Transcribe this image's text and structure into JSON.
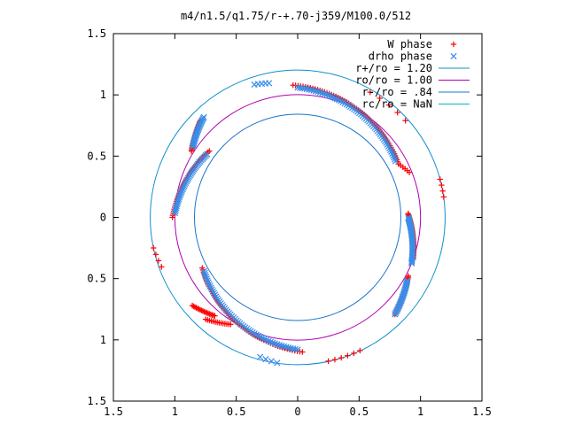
{
  "chart_data": {
    "type": "scatter",
    "title": "m4/n1.5/q1.75/r-+.70-j359/M100.0/512",
    "xlabel": "",
    "ylabel": "",
    "xlim": [
      -1.5,
      1.5
    ],
    "ylim": [
      -1.5,
      1.5
    ],
    "x_ticks": [
      -1.5,
      -1,
      -0.5,
      0,
      0.5,
      1,
      1.5
    ],
    "x_tick_labels": [
      "1.5",
      "1",
      "0.5",
      "0",
      "0.5",
      "1",
      "1.5"
    ],
    "y_ticks": [
      1.5,
      1,
      0.5,
      0,
      -0.5,
      -1,
      -1.5
    ],
    "y_tick_labels": [
      "1.5",
      "1",
      "0.5",
      "0",
      "0.5",
      "1",
      "1.5"
    ],
    "grid": false,
    "legend_position": "top-right",
    "colors": {
      "w_phase": "#ff0000",
      "drho_phase": "#3a8de8",
      "r_plus": "#0f8fcf",
      "r_o": "#b000b0",
      "r_minus": "#1a74c8",
      "r_c": "#00b8b8",
      "axis": "#000000"
    },
    "circles": [
      {
        "name": "r+/ro = 1.20",
        "radius": 1.2,
        "color_key": "r_plus"
      },
      {
        "name": "ro/ro = 1.00",
        "radius": 1.0,
        "color_key": "r_o"
      },
      {
        "name": "r-/ro = .84",
        "radius": 0.84,
        "color_key": "r_minus"
      },
      {
        "name": "rc/ro = NaN",
        "radius": null,
        "color_key": "r_c"
      }
    ],
    "series": [
      {
        "name": "W phase",
        "marker": "+",
        "color_key": "w_phase",
        "arcs": [
          {
            "a0": 92,
            "a1": 28,
            "r0": 1.08,
            "r1": 0.93,
            "n": 60
          },
          {
            "a0": 28,
            "a1": 22,
            "r0": 0.93,
            "r1": 0.98,
            "n": 6
          },
          {
            "a0": 2,
            "a1": -20,
            "r0": 0.9,
            "r1": 1.0,
            "n": 40
          },
          {
            "a0": -28,
            "a1": -45,
            "r0": 1.02,
            "r1": 1.12,
            "n": 30
          },
          {
            "a0": -88,
            "a1": -152,
            "r0": 1.1,
            "r1": 0.88,
            "n": 60
          },
          {
            "a0": -130,
            "a1": -140,
            "r0": 1.05,
            "r1": 1.12,
            "n": 18
          },
          {
            "a0": -122,
            "a1": -132,
            "r0": 1.03,
            "r1": 1.12,
            "n": 14
          },
          {
            "a0": 180,
            "a1": 143,
            "r0": 1.02,
            "r1": 0.9,
            "n": 40
          },
          {
            "a0": 135,
            "a1": 148,
            "r0": 1.12,
            "r1": 1.02,
            "n": 24
          },
          {
            "a0": 60,
            "a1": 42,
            "r0": 1.18,
            "r1": 1.18,
            "n": 5
          },
          {
            "a0": 15,
            "a1": 8,
            "r0": 1.2,
            "r1": 1.2,
            "n": 4
          },
          {
            "a0": -65,
            "a1": -78,
            "r0": 1.2,
            "r1": 1.2,
            "n": 6
          },
          {
            "a0": -160,
            "a1": -168,
            "r0": 1.18,
            "r1": 1.2,
            "n": 4
          }
        ]
      },
      {
        "name": "drho phase",
        "marker": "x",
        "color_key": "drho_phase",
        "arcs": [
          {
            "a0": 90,
            "a1": 30,
            "r0": 1.06,
            "r1": 0.92,
            "n": 60
          },
          {
            "a0": 0,
            "a1": -22,
            "r0": 0.9,
            "r1": 1.0,
            "n": 40
          },
          {
            "a0": -30,
            "a1": -45,
            "r0": 1.03,
            "r1": 1.12,
            "n": 26
          },
          {
            "a0": -90,
            "a1": -150,
            "r0": 1.08,
            "r1": 0.88,
            "n": 60
          },
          {
            "a0": 178,
            "a1": 145,
            "r0": 1.0,
            "r1": 0.9,
            "n": 40
          },
          {
            "a0": 133,
            "a1": 146,
            "r0": 1.12,
            "r1": 1.03,
            "n": 24
          },
          {
            "a0": 108,
            "a1": 102,
            "r0": 1.14,
            "r1": 1.12,
            "n": 5
          },
          {
            "a0": -105,
            "a1": -98,
            "r0": 1.18,
            "r1": 1.2,
            "n": 4
          }
        ]
      }
    ],
    "legend": [
      {
        "label": "W phase",
        "kind": "point",
        "symbol": "+",
        "color_key": "w_phase"
      },
      {
        "label": "drho phase",
        "kind": "point",
        "symbol": "x",
        "color_key": "drho_phase"
      },
      {
        "label": "r+/ro = 1.20",
        "kind": "line",
        "color_key": "r_plus"
      },
      {
        "label": "ro/ro = 1.00",
        "kind": "line",
        "color_key": "r_o"
      },
      {
        "label": "r-/ro = .84",
        "kind": "line",
        "color_key": "r_minus"
      },
      {
        "label": "rc/ro = NaN",
        "kind": "line",
        "color_key": "r_c"
      }
    ]
  }
}
